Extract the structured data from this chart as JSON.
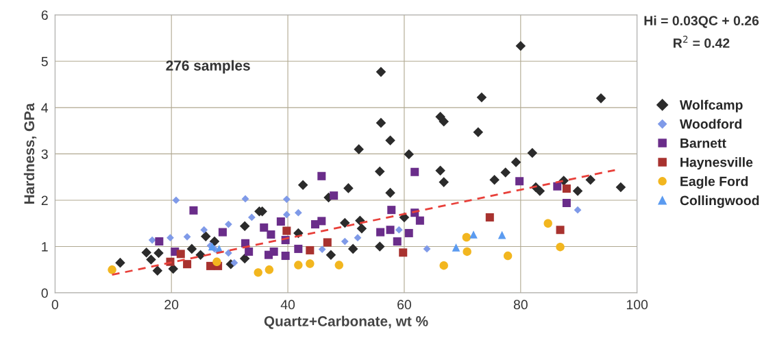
{
  "chart_data": {
    "type": "scatter",
    "xlabel": "Quartz+Carbonate, wt %",
    "ylabel": "Hardness, GPa",
    "annotations": [
      "276 samples",
      "Hi = 0.03QC + 0.26",
      "R$^{2}$ = 0.42"
    ],
    "xlim": [
      0,
      100
    ],
    "xticks": [
      0,
      20,
      40,
      60,
      80,
      100
    ],
    "ylim": [
      0,
      6
    ],
    "yticks": [
      0,
      1,
      2,
      3,
      4,
      5,
      6
    ],
    "grid": true,
    "legend": "right",
    "series": [
      {
        "name": "Wolfcamp",
        "color": "#2b2b2b",
        "marker": "diamond",
        "x": [
          11.2,
          17.6,
          15.7,
          16.5,
          17.8,
          23.5,
          20.3,
          25,
          30.2,
          32.6,
          32.6,
          25.9,
          27.4,
          35.1,
          35.6,
          42.6,
          50.4,
          47,
          49.8,
          52.4,
          52.7,
          55.8,
          51.2,
          47.4,
          41.8,
          57.6,
          52.2,
          60.8,
          55.8,
          57.6,
          60,
          56,
          56,
          66.2,
          66.8,
          72.7,
          73.3,
          80,
          82,
          79.2,
          77.4,
          75.5,
          66.2,
          66.8,
          82.6,
          83.3,
          89.8,
          92,
          97.2,
          87.4,
          93.8
        ],
        "values": [
          0.65,
          0.48,
          0.87,
          0.72,
          0.86,
          0.95,
          0.52,
          0.82,
          0.62,
          1.44,
          0.74,
          1.22,
          1.11,
          1.76,
          1.76,
          2.33,
          2.26,
          2.06,
          1.51,
          1.56,
          1.39,
          1.0,
          0.95,
          0.82,
          1.29,
          3.29,
          3.1,
          2.99,
          2.62,
          2.16,
          1.63,
          4.77,
          3.67,
          3.8,
          3.7,
          3.47,
          4.22,
          5.33,
          3.02,
          2.82,
          2.6,
          2.44,
          2.64,
          2.39,
          2.28,
          2.2,
          2.2,
          2.44,
          2.28,
          2.42,
          4.2
        ]
      },
      {
        "name": "Woodford",
        "color": "#7f9ae8",
        "marker": "diamond",
        "x": [
          20.8,
          32.7,
          33.8,
          29.8,
          25.6,
          16.7,
          19.8,
          22.7,
          26.7,
          29.8,
          30.8,
          27.4,
          39.8,
          41.8,
          39.8,
          49.8,
          52,
          45.9,
          59.1,
          63.9,
          89.8
        ],
        "values": [
          2.0,
          2.03,
          1.63,
          1.48,
          1.36,
          1.14,
          1.19,
          1.21,
          1.02,
          0.86,
          0.65,
          0.95,
          2.02,
          1.73,
          1.69,
          1.11,
          1.19,
          0.94,
          1.36,
          0.95,
          1.79
        ]
      },
      {
        "name": "Barnett",
        "color": "#6a2d8a",
        "marker": "square",
        "x": [
          23.8,
          17.9,
          20.6,
          28.8,
          32.7,
          33.3,
          45.8,
          47.9,
          57.8,
          61.8,
          61.8,
          62.7,
          60.8,
          58.8,
          55.9,
          57.6,
          44.7,
          45.8,
          38.8,
          35.9,
          37.1,
          39.6,
          41.8,
          36.7,
          39.6,
          37.6,
          79.8,
          86.3,
          87.9
        ],
        "values": [
          1.78,
          1.11,
          0.89,
          1.31,
          1.07,
          0.89,
          2.52,
          2.1,
          1.79,
          2.61,
          1.73,
          1.56,
          1.29,
          1.11,
          1.31,
          1.36,
          1.48,
          1.55,
          1.54,
          1.41,
          1.26,
          1.14,
          0.95,
          0.82,
          0.8,
          0.89,
          2.41,
          2.3,
          1.94
        ]
      },
      {
        "name": "Haynesville",
        "color": "#a8322f",
        "marker": "square",
        "x": [
          21.6,
          19.8,
          22.7,
          26.7,
          28,
          39.8,
          46.8,
          43.8,
          59.8,
          74.7,
          86.8,
          87.9
        ],
        "values": [
          0.84,
          0.67,
          0.62,
          0.58,
          0.58,
          1.34,
          1.09,
          0.92,
          0.87,
          1.63,
          1.36,
          2.25
        ]
      },
      {
        "name": "Eagle Ford",
        "color": "#f2b61f",
        "marker": "circle",
        "x": [
          9.8,
          27.8,
          34.9,
          36.8,
          41.8,
          43.8,
          48.8,
          66.8,
          70.7,
          70.8,
          77.8,
          84.7,
          86.8
        ],
        "values": [
          0.5,
          0.67,
          0.44,
          0.5,
          0.6,
          0.63,
          0.6,
          0.59,
          1.2,
          0.89,
          0.8,
          1.5,
          0.99
        ]
      },
      {
        "name": "Collingwood",
        "color": "#5b9bf0",
        "marker": "triangle",
        "x": [
          27,
          28.2,
          68.9,
          71.9,
          76.8
        ],
        "values": [
          1.0,
          0.95,
          0.98,
          1.26,
          1.25
        ]
      },
      {
        "type": "line",
        "color": "#e8403a",
        "line_style": "dashed",
        "marker": "none",
        "x": [
          9.8,
          96.2
        ],
        "values": [
          0.39,
          2.65
        ]
      }
    ]
  }
}
